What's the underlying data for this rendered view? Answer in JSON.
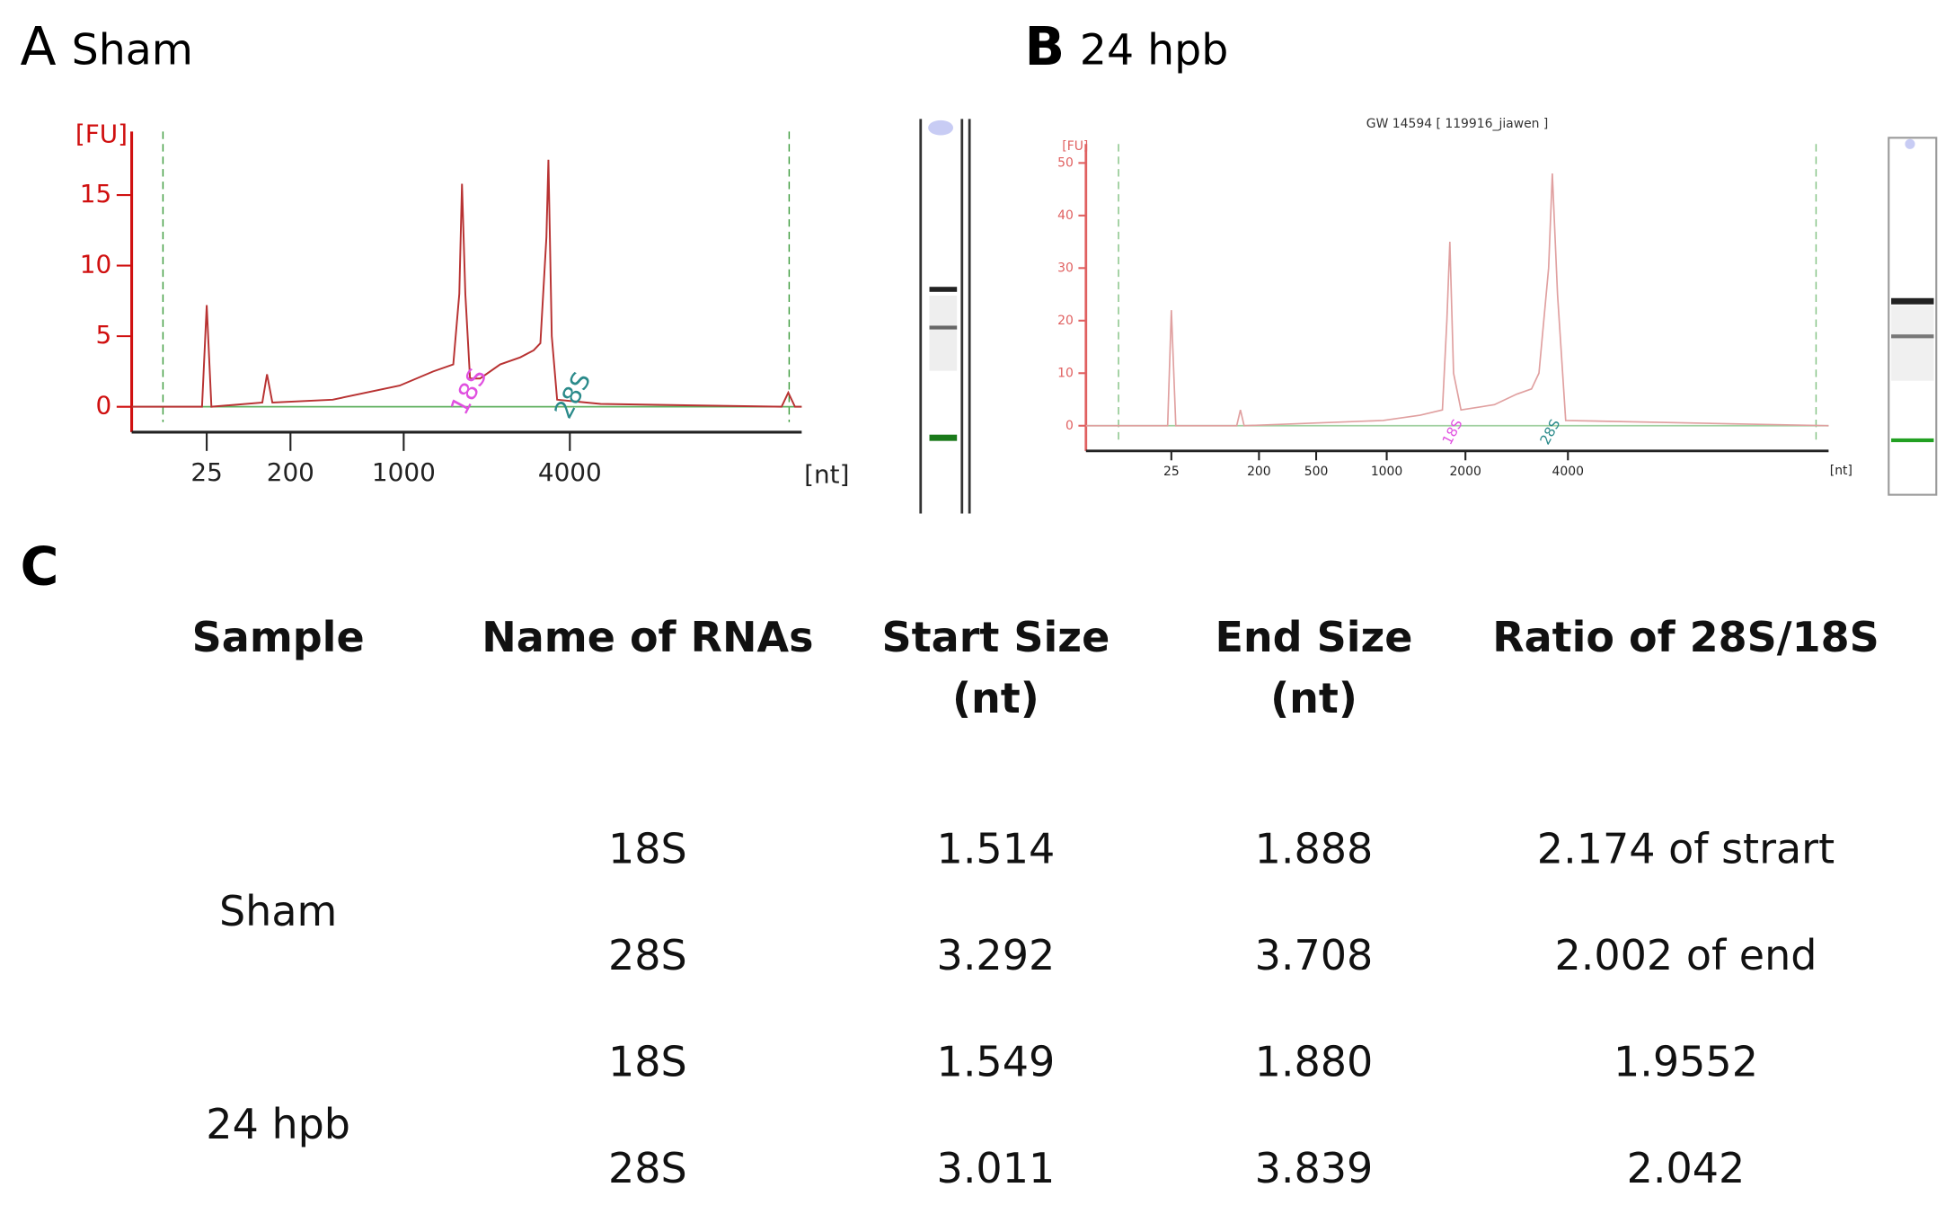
{
  "panels": {
    "a": {
      "letter": "A",
      "label": "Sham"
    },
    "b": {
      "letter": "B",
      "label": "24 hpb"
    },
    "c": {
      "letter": "C"
    }
  },
  "chart_data": [
    {
      "type": "line",
      "ylabel": "[FU]",
      "xlabel": "[nt]",
      "ylim": [
        -1.8,
        19.5
      ],
      "yticks": [
        0,
        5,
        10,
        15
      ],
      "xlim": [
        0,
        100
      ],
      "xticks": [
        {
          "value": 11.2,
          "label": "25"
        },
        {
          "value": 23.7,
          "label": "200"
        },
        {
          "value": 40.6,
          "label": "1000"
        },
        {
          "value": 65.4,
          "label": "4000"
        }
      ],
      "color": "#b83232",
      "axis_color": "#d01010",
      "x": [
        0,
        10.5,
        11.2,
        11.9,
        19.5,
        20.2,
        21,
        30,
        40,
        45,
        48,
        48.9,
        49.3,
        49.8,
        50.5,
        52,
        55,
        58,
        60,
        61,
        61.9,
        62.2,
        62.7,
        63.5,
        70,
        97,
        98,
        99,
        100
      ],
      "values": [
        0,
        0,
        7.2,
        0,
        0.3,
        2.3,
        0.3,
        0.5,
        1.5,
        2.5,
        3,
        8,
        15.8,
        8,
        2,
        2,
        3,
        3.5,
        4,
        4.5,
        12,
        17.5,
        5,
        0.5,
        0.2,
        0,
        1,
        0,
        0
      ],
      "annotations": [
        "18S",
        "28S"
      ]
    },
    {
      "type": "line",
      "title": "GW 14594  [ 119916_jiawen ]",
      "ylabel": "[FU]",
      "xlabel": "[nt]",
      "ylim": [
        -4.8,
        53.6
      ],
      "yticks": [
        0,
        10,
        20,
        30,
        40,
        50
      ],
      "xlim": [
        0,
        100
      ],
      "xticks": [
        {
          "value": 11.5,
          "label": "25"
        },
        {
          "value": 23.3,
          "label": "200"
        },
        {
          "value": 31.0,
          "label": "500"
        },
        {
          "value": 40.5,
          "label": "1000"
        },
        {
          "value": 51.1,
          "label": "2000"
        },
        {
          "value": 64.9,
          "label": "4000"
        }
      ],
      "color": "#e0a0a0",
      "axis_color": "#e06060",
      "x": [
        0,
        11,
        11.5,
        12.1,
        20.3,
        20.8,
        21.3,
        40,
        45,
        48,
        48.6,
        49,
        49.5,
        50.5,
        55,
        58,
        60,
        61,
        62.3,
        62.8,
        63.5,
        64.6,
        100
      ],
      "values": [
        0,
        0,
        22,
        0,
        0,
        3,
        0,
        1,
        2,
        3,
        20,
        35,
        10,
        3,
        4,
        6,
        7,
        10,
        30,
        48,
        25,
        1,
        0
      ],
      "annotations": [
        "18S",
        "28S"
      ]
    }
  ],
  "table": {
    "header": [
      [
        "Sample"
      ],
      [
        "Name of RNAs"
      ],
      [
        "Start Size",
        "(nt)"
      ],
      [
        "End Size",
        "(nt)"
      ],
      [
        "Ratio of 28S/18S"
      ]
    ],
    "groups": [
      {
        "sample": "Sham",
        "rows": [
          [
            "18S",
            "1.514",
            "1.888",
            "2.174 of strart"
          ],
          [
            "28S",
            "3.292",
            "3.708",
            "2.002 of end"
          ]
        ]
      },
      {
        "sample": "24 hpb",
        "rows": [
          [
            "18S",
            "1.549",
            "1.880",
            "1.9552"
          ],
          [
            "28S",
            "3.011",
            "3.839",
            "2.042"
          ]
        ]
      }
    ]
  }
}
